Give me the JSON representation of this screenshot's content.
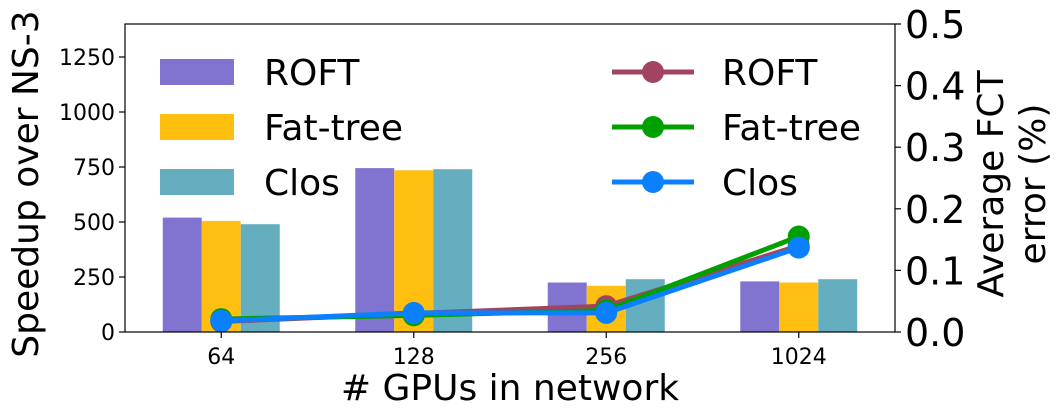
{
  "chart_data": {
    "type": "bar+line",
    "categories": [
      "64",
      "128",
      "256",
      "1024"
    ],
    "xlabel": "# GPUs in network",
    "ylabel_left": "Speedup over NS-3",
    "ylabel_right": [
      "Average FCT",
      "error (%)"
    ],
    "ylim_left": [
      0,
      1400
    ],
    "yticks_left": [
      0,
      250,
      500,
      750,
      1000,
      1250
    ],
    "ylim_right": [
      0,
      0.5
    ],
    "yticks_right": [
      0.0,
      0.1,
      0.2,
      0.3,
      0.4,
      0.5
    ],
    "bar_series": [
      {
        "name": "ROFT",
        "color": "#8074d0",
        "values": [
          520,
          745,
          225,
          230
        ]
      },
      {
        "name": "Fat-tree",
        "color": "#ffbf10",
        "values": [
          505,
          735,
          210,
          225
        ]
      },
      {
        "name": "Clos",
        "color": "#64aec0",
        "values": [
          490,
          740,
          240,
          240
        ]
      }
    ],
    "line_series": [
      {
        "name": "ROFT",
        "color": "#a24460",
        "values": [
          0.017,
          0.03,
          0.042,
          0.14
        ]
      },
      {
        "name": "Fat-tree",
        "color": "#00a000",
        "values": [
          0.021,
          0.027,
          0.035,
          0.155
        ]
      },
      {
        "name": "Clos",
        "color": "#0a80ff",
        "values": [
          0.018,
          0.031,
          0.031,
          0.137
        ]
      }
    ],
    "legend": {
      "bars_position": "top-left",
      "lines_position": "top-right"
    },
    "grid": false
  }
}
